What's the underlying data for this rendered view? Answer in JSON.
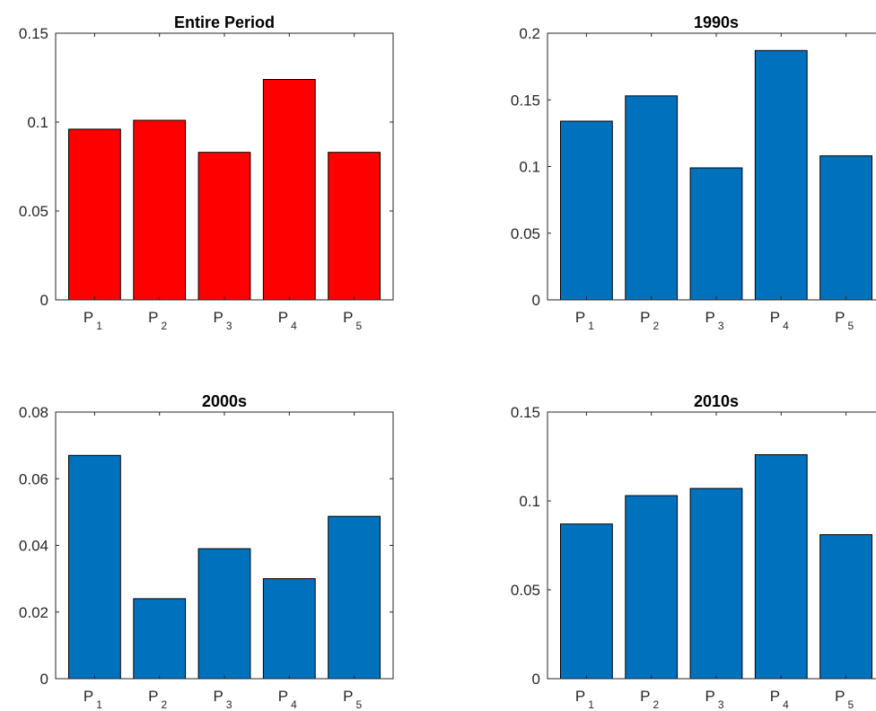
{
  "chart_data": [
    {
      "type": "bar",
      "title": "Entire Period",
      "bar_color": "#ff0000",
      "categories": [
        {
          "base": "P",
          "sub": "1"
        },
        {
          "base": "P",
          "sub": "2"
        },
        {
          "base": "P",
          "sub": "3"
        },
        {
          "base": "P",
          "sub": "4"
        },
        {
          "base": "P",
          "sub": "5"
        }
      ],
      "values": [
        0.096,
        0.101,
        0.083,
        0.124,
        0.083
      ],
      "ylim": [
        0,
        0.15
      ],
      "yticks": [
        0,
        0.05,
        0.1,
        0.15
      ],
      "ytick_labels": [
        "0",
        "0.05",
        "0.1",
        "0.15"
      ],
      "grid": false
    },
    {
      "type": "bar",
      "title": "1990s",
      "bar_color": "#0072bd",
      "categories": [
        {
          "base": "P",
          "sub": "1"
        },
        {
          "base": "P",
          "sub": "2"
        },
        {
          "base": "P",
          "sub": "3"
        },
        {
          "base": "P",
          "sub": "4"
        },
        {
          "base": "P",
          "sub": "5"
        }
      ],
      "values": [
        0.134,
        0.153,
        0.099,
        0.187,
        0.108
      ],
      "ylim": [
        0,
        0.2
      ],
      "yticks": [
        0,
        0.05,
        0.1,
        0.15,
        0.2
      ],
      "ytick_labels": [
        "0",
        "0.05",
        "0.1",
        "0.15",
        "0.2"
      ],
      "grid": false
    },
    {
      "type": "bar",
      "title": "2000s",
      "bar_color": "#0072bd",
      "categories": [
        {
          "base": "P",
          "sub": "1"
        },
        {
          "base": "P",
          "sub": "2"
        },
        {
          "base": "P",
          "sub": "3"
        },
        {
          "base": "P",
          "sub": "4"
        },
        {
          "base": "P",
          "sub": "5"
        }
      ],
      "values": [
        0.067,
        0.024,
        0.039,
        0.03,
        0.0487
      ],
      "ylim": [
        0,
        0.08
      ],
      "yticks": [
        0,
        0.02,
        0.04,
        0.06,
        0.08
      ],
      "ytick_labels": [
        "0",
        "0.02",
        "0.04",
        "0.06",
        "0.08"
      ],
      "grid": false
    },
    {
      "type": "bar",
      "title": "2010s",
      "bar_color": "#0072bd",
      "categories": [
        {
          "base": "P",
          "sub": "1"
        },
        {
          "base": "P",
          "sub": "2"
        },
        {
          "base": "P",
          "sub": "3"
        },
        {
          "base": "P",
          "sub": "4"
        },
        {
          "base": "P",
          "sub": "5"
        }
      ],
      "values": [
        0.087,
        0.103,
        0.107,
        0.126,
        0.081
      ],
      "ylim": [
        0,
        0.15
      ],
      "yticks": [
        0,
        0.05,
        0.1,
        0.15
      ],
      "ytick_labels": [
        "0",
        "0.05",
        "0.1",
        "0.15"
      ],
      "grid": false
    }
  ]
}
